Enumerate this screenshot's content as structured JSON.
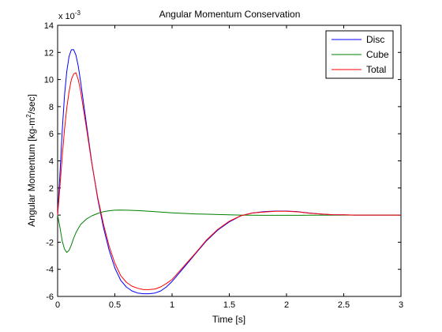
{
  "chart_data": {
    "type": "line",
    "title": "Angular Momentum Conservation",
    "xlabel": "Time [s]",
    "ylabel_prefix": "Angular Momentum [kg-m",
    "ylabel_sup": "2",
    "ylabel_suffix": "/sec]",
    "scale_prefix": "x 10",
    "scale_exp": "-3",
    "xlim": [
      0,
      3
    ],
    "ylim": [
      -6,
      14
    ],
    "xticks": [
      0,
      0.5,
      1,
      1.5,
      2,
      2.5,
      3
    ],
    "xtick_labels": [
      "0",
      "0.5",
      "1",
      "1.5",
      "2",
      "2.5",
      "3"
    ],
    "yticks": [
      -6,
      -4,
      -2,
      0,
      2,
      4,
      6,
      8,
      10,
      12,
      14
    ],
    "ytick_labels": [
      "-6",
      "-4",
      "-2",
      "0",
      "2",
      "4",
      "6",
      "8",
      "10",
      "12",
      "14"
    ],
    "grid": false,
    "legend_position": "top-right",
    "series": [
      {
        "name": "Disc",
        "color": "#0000ff",
        "x": [
          0,
          0.02,
          0.04,
          0.06,
          0.08,
          0.1,
          0.12,
          0.14,
          0.16,
          0.18,
          0.2,
          0.25,
          0.3,
          0.35,
          0.4,
          0.45,
          0.5,
          0.55,
          0.6,
          0.65,
          0.7,
          0.75,
          0.8,
          0.85,
          0.9,
          0.95,
          1.0,
          1.1,
          1.2,
          1.3,
          1.4,
          1.5,
          1.6,
          1.7,
          1.8,
          1.9,
          2.0,
          2.1,
          2.2,
          2.3,
          2.4,
          2.5,
          2.6,
          2.8,
          3.0
        ],
        "y": [
          0,
          3.0,
          6.2,
          8.8,
          10.6,
          11.7,
          12.2,
          12.2,
          11.8,
          11.0,
          9.9,
          6.8,
          3.8,
          1.2,
          -0.9,
          -2.6,
          -3.9,
          -4.8,
          -5.3,
          -5.6,
          -5.75,
          -5.8,
          -5.8,
          -5.75,
          -5.6,
          -5.3,
          -4.9,
          -3.9,
          -2.9,
          -1.9,
          -1.1,
          -0.5,
          -0.05,
          0.15,
          0.25,
          0.3,
          0.3,
          0.25,
          0.15,
          0.08,
          0.03,
          0.02,
          0.0,
          0.0,
          0.0
        ]
      },
      {
        "name": "Cube",
        "color": "#008000",
        "x": [
          0,
          0.02,
          0.04,
          0.06,
          0.08,
          0.1,
          0.12,
          0.14,
          0.16,
          0.18,
          0.2,
          0.25,
          0.3,
          0.35,
          0.4,
          0.45,
          0.5,
          0.55,
          0.6,
          0.7,
          0.8,
          0.9,
          1.0,
          1.2,
          1.4,
          1.6,
          1.8,
          2.0,
          2.2,
          2.5,
          3.0
        ],
        "y": [
          0,
          -0.9,
          -1.9,
          -2.5,
          -2.75,
          -2.6,
          -2.2,
          -1.7,
          -1.3,
          -1.0,
          -0.7,
          -0.3,
          -0.05,
          0.12,
          0.25,
          0.32,
          0.36,
          0.37,
          0.36,
          0.33,
          0.28,
          0.22,
          0.17,
          0.09,
          0.04,
          0.0,
          -0.02,
          -0.02,
          -0.01,
          0.0,
          0.0
        ]
      },
      {
        "name": "Total",
        "color": "#ff0000",
        "x": [
          0,
          0.02,
          0.04,
          0.06,
          0.08,
          0.1,
          0.12,
          0.14,
          0.16,
          0.18,
          0.2,
          0.25,
          0.3,
          0.35,
          0.4,
          0.45,
          0.5,
          0.55,
          0.6,
          0.65,
          0.7,
          0.75,
          0.8,
          0.85,
          0.9,
          0.95,
          1.0,
          1.1,
          1.2,
          1.3,
          1.4,
          1.5,
          1.6,
          1.7,
          1.8,
          1.9,
          2.0,
          2.1,
          2.2,
          2.3,
          2.4,
          2.5,
          2.6,
          2.8,
          3.0
        ],
        "y": [
          0,
          2.1,
          4.3,
          6.3,
          7.9,
          9.1,
          10.0,
          10.4,
          10.5,
          10.0,
          9.2,
          6.5,
          3.75,
          1.3,
          -0.65,
          -2.3,
          -3.55,
          -4.45,
          -4.95,
          -5.25,
          -5.4,
          -5.5,
          -5.5,
          -5.45,
          -5.3,
          -5.05,
          -4.75,
          -3.8,
          -2.85,
          -1.85,
          -1.05,
          -0.45,
          -0.05,
          0.15,
          0.23,
          0.28,
          0.28,
          0.24,
          0.14,
          0.08,
          0.03,
          0.02,
          0.0,
          0.0,
          0.0
        ]
      }
    ]
  }
}
